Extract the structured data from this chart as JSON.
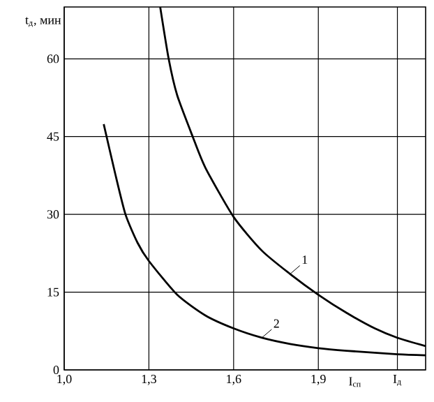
{
  "chart_data": {
    "type": "line",
    "ylabel": "t$_{д}$, мин",
    "xlabel": "I$_{сп}$",
    "xlim": [
      1.0,
      2.28
    ],
    "ylim": [
      0,
      70
    ],
    "xticks": [
      {
        "value": 1.0,
        "label": "1,0"
      },
      {
        "value": 1.3,
        "label": "1,3"
      },
      {
        "value": 1.6,
        "label": "1,6"
      },
      {
        "value": 1.9,
        "label": "1,9"
      },
      {
        "value": 2.18,
        "label": "I$_{д}$"
      }
    ],
    "yticks": [
      0,
      15,
      30,
      45,
      60
    ],
    "grid": true,
    "marker": "none",
    "line_style": "solid",
    "series": [
      {
        "name": "1",
        "color": "#000000",
        "x": [
          1.34,
          1.37,
          1.4,
          1.455,
          1.5,
          1.6,
          1.7,
          1.8,
          1.9,
          2.0,
          2.1,
          2.18,
          2.28
        ],
        "values": [
          70,
          60,
          53,
          45,
          39,
          29.5,
          23,
          18.5,
          14.5,
          11,
          8,
          6.2,
          4.6
        ]
      },
      {
        "name": "2",
        "color": "#000000",
        "x": [
          1.14,
          1.18,
          1.217,
          1.26,
          1.3,
          1.4,
          1.5,
          1.6,
          1.7,
          1.8,
          1.9,
          2.0,
          2.18,
          2.28
        ],
        "values": [
          47.4,
          38,
          30,
          24.5,
          21,
          14.5,
          10.5,
          8,
          6.2,
          5,
          4.2,
          3.7,
          3,
          2.8
        ]
      }
    ]
  }
}
